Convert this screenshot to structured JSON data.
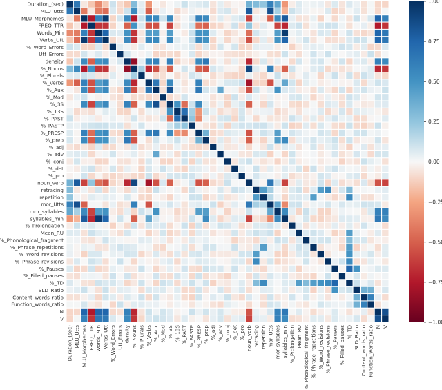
{
  "chart_data": {
    "type": "heatmap",
    "title": "",
    "xlabel": "",
    "ylabel": "",
    "colormap": "RdBu",
    "vmin": -1.0,
    "vmax": 1.0,
    "colorbar_ticks": [
      "1.00",
      "0.75",
      "0.50",
      "0.25",
      "0.00",
      "−0.25",
      "−0.50",
      "−0.75",
      "−1.00"
    ],
    "colorbar_values": [
      1.0,
      0.75,
      0.5,
      0.25,
      0.0,
      -0.25,
      -0.5,
      -0.75,
      -1.0
    ],
    "labels": [
      "Duration_(sec)",
      "MLU_Utts",
      "MLU_Morphemes",
      "FREQ_TTR",
      "Words_Min",
      "Verbs_Utt",
      "%_Word_Errors",
      "Utt_Errors",
      "density",
      "%_Nouns",
      "%_Plurals",
      "%_Verbs",
      "%_Aux",
      "%_Mod",
      "%_3S",
      "%_13S",
      "%_PAST",
      "%_PASTP",
      "%_PRESP",
      "%_prep",
      "%_adj",
      "%_adv",
      "%_conj",
      "%_det",
      "%_pro",
      "noun_verb",
      "retracing",
      "repetition",
      "mor_Utts",
      "mor_syllables",
      "syllables_min",
      "%_Prolongation",
      "Mean_RU",
      "%_Phonological_fragment",
      "%_Phrase_repetitions",
      "%_Word_revisions",
      "%_Phrase_revisions",
      "%_Pauses",
      "%_Filled_pauses",
      "%_TD",
      "SLD_Ratio",
      "Content_words_ratio",
      "Function_words_ratio",
      "N",
      "V"
    ],
    "strong_pairs": [
      [
        0,
        1,
        0.65
      ],
      [
        0,
        2,
        -0.05
      ],
      [
        0,
        3,
        -0.15
      ],
      [
        0,
        4,
        -0.35
      ],
      [
        0,
        5,
        -0.15
      ],
      [
        0,
        8,
        -0.15
      ],
      [
        0,
        9,
        0.3
      ],
      [
        0,
        11,
        -0.3
      ],
      [
        0,
        25,
        0.35
      ],
      [
        0,
        26,
        0.3
      ],
      [
        0,
        27,
        0.25
      ],
      [
        0,
        28,
        0.6
      ],
      [
        0,
        29,
        0.4
      ],
      [
        0,
        30,
        -0.3
      ],
      [
        0,
        43,
        -0.1
      ],
      [
        0,
        44,
        -0.1
      ],
      [
        1,
        2,
        -0.4
      ],
      [
        1,
        3,
        -0.05
      ],
      [
        1,
        4,
        -0.4
      ],
      [
        1,
        5,
        -0.45
      ],
      [
        1,
        9,
        0.55
      ],
      [
        1,
        11,
        -0.5
      ],
      [
        1,
        25,
        0.8
      ],
      [
        1,
        28,
        0.85
      ],
      [
        1,
        29,
        0.2
      ],
      [
        1,
        30,
        -0.2
      ],
      [
        2,
        3,
        -0.75
      ],
      [
        2,
        4,
        0.6
      ],
      [
        2,
        5,
        0.95
      ],
      [
        2,
        8,
        0.55
      ],
      [
        2,
        9,
        -0.75
      ],
      [
        2,
        11,
        0.6
      ],
      [
        2,
        12,
        0.55
      ],
      [
        2,
        14,
        0.55
      ],
      [
        2,
        18,
        0.6
      ],
      [
        2,
        19,
        0.55
      ],
      [
        2,
        25,
        -0.6
      ],
      [
        2,
        28,
        -0.5
      ],
      [
        2,
        29,
        0.55
      ],
      [
        2,
        30,
        0.8
      ],
      [
        2,
        43,
        0.75
      ],
      [
        2,
        44,
        0.6
      ],
      [
        3,
        4,
        -0.65
      ],
      [
        3,
        5,
        -0.65
      ],
      [
        3,
        8,
        -0.5
      ],
      [
        3,
        9,
        0.5
      ],
      [
        3,
        11,
        -0.55
      ],
      [
        3,
        12,
        -0.55
      ],
      [
        3,
        14,
        -0.6
      ],
      [
        3,
        18,
        -0.45
      ],
      [
        3,
        19,
        -0.5
      ],
      [
        3,
        25,
        0.25
      ],
      [
        3,
        29,
        -0.6
      ],
      [
        3,
        30,
        -0.7
      ],
      [
        3,
        43,
        -0.75
      ],
      [
        3,
        44,
        -0.65
      ],
      [
        4,
        5,
        0.75
      ],
      [
        4,
        8,
        0.5
      ],
      [
        4,
        9,
        -0.65
      ],
      [
        4,
        11,
        0.45
      ],
      [
        4,
        12,
        0.45
      ],
      [
        4,
        14,
        0.45
      ],
      [
        4,
        18,
        0.5
      ],
      [
        4,
        19,
        0.5
      ],
      [
        4,
        25,
        -0.45
      ],
      [
        4,
        29,
        0.45
      ],
      [
        4,
        30,
        0.95
      ],
      [
        4,
        43,
        0.75
      ],
      [
        4,
        44,
        0.65
      ],
      [
        5,
        8,
        0.55
      ],
      [
        5,
        9,
        -0.65
      ],
      [
        5,
        11,
        0.55
      ],
      [
        5,
        12,
        0.55
      ],
      [
        5,
        14,
        0.55
      ],
      [
        5,
        18,
        0.55
      ],
      [
        5,
        19,
        0.5
      ],
      [
        5,
        25,
        -0.55
      ],
      [
        5,
        29,
        0.5
      ],
      [
        5,
        30,
        0.75
      ],
      [
        5,
        43,
        0.75
      ],
      [
        5,
        44,
        0.65
      ],
      [
        8,
        9,
        -0.85
      ],
      [
        8,
        11,
        0.55
      ],
      [
        8,
        12,
        0.6
      ],
      [
        8,
        14,
        0.6
      ],
      [
        8,
        18,
        0.55
      ],
      [
        8,
        19,
        0.65
      ],
      [
        8,
        25,
        -0.7
      ],
      [
        8,
        43,
        0.6
      ],
      [
        8,
        44,
        0.55
      ],
      [
        9,
        10,
        0.2
      ],
      [
        9,
        11,
        -0.7
      ],
      [
        9,
        12,
        -0.55
      ],
      [
        9,
        14,
        -0.5
      ],
      [
        9,
        18,
        -0.5
      ],
      [
        9,
        19,
        -0.55
      ],
      [
        9,
        25,
        0.9
      ],
      [
        9,
        28,
        0.6
      ],
      [
        9,
        30,
        -0.5
      ],
      [
        9,
        43,
        -0.7
      ],
      [
        9,
        44,
        -0.65
      ],
      [
        11,
        12,
        0.65
      ],
      [
        11,
        14,
        0.55
      ],
      [
        11,
        18,
        0.6
      ],
      [
        11,
        25,
        -0.8
      ],
      [
        11,
        28,
        -0.55
      ],
      [
        11,
        30,
        0.4
      ],
      [
        12,
        14,
        0.85
      ],
      [
        12,
        18,
        0.65
      ],
      [
        12,
        21,
        0.4
      ],
      [
        12,
        25,
        -0.55
      ],
      [
        12,
        29,
        0.5
      ],
      [
        14,
        15,
        0.5
      ],
      [
        14,
        16,
        -0.45
      ],
      [
        14,
        18,
        0.55
      ],
      [
        14,
        25,
        -0.5
      ],
      [
        15,
        16,
        0.7
      ],
      [
        15,
        17,
        0.2
      ],
      [
        15,
        18,
        -0.3
      ],
      [
        16,
        17,
        0.25
      ],
      [
        16,
        18,
        -0.35
      ],
      [
        18,
        19,
        0.35
      ],
      [
        18,
        25,
        -0.55
      ],
      [
        18,
        29,
        0.45
      ],
      [
        19,
        25,
        -0.5
      ],
      [
        19,
        29,
        0.45
      ],
      [
        19,
        30,
        0.55
      ],
      [
        25,
        28,
        0.65
      ],
      [
        25,
        30,
        -0.6
      ],
      [
        25,
        43,
        -0.55
      ],
      [
        25,
        44,
        -0.6
      ],
      [
        26,
        27,
        0.45
      ],
      [
        26,
        28,
        0.2
      ],
      [
        26,
        35,
        0.45
      ],
      [
        26,
        36,
        0.55
      ],
      [
        26,
        39,
        0.3
      ],
      [
        27,
        28,
        0.15
      ],
      [
        27,
        34,
        0.45
      ],
      [
        27,
        39,
        0.55
      ],
      [
        28,
        29,
        0.4
      ],
      [
        28,
        30,
        -0.35
      ],
      [
        29,
        30,
        0.55
      ],
      [
        29,
        43,
        0.6
      ],
      [
        29,
        44,
        0.6
      ],
      [
        30,
        43,
        0.65
      ],
      [
        30,
        44,
        0.55
      ],
      [
        32,
        39,
        0.45
      ],
      [
        33,
        39,
        0.3
      ],
      [
        34,
        39,
        0.45
      ],
      [
        35,
        39,
        0.5
      ],
      [
        36,
        39,
        0.55
      ],
      [
        37,
        39,
        0.75
      ],
      [
        37,
        40,
        0.5
      ],
      [
        40,
        41,
        0.35
      ],
      [
        40,
        42,
        0.35
      ],
      [
        41,
        42,
        0.6
      ],
      [
        43,
        44,
        0.85
      ]
    ]
  }
}
